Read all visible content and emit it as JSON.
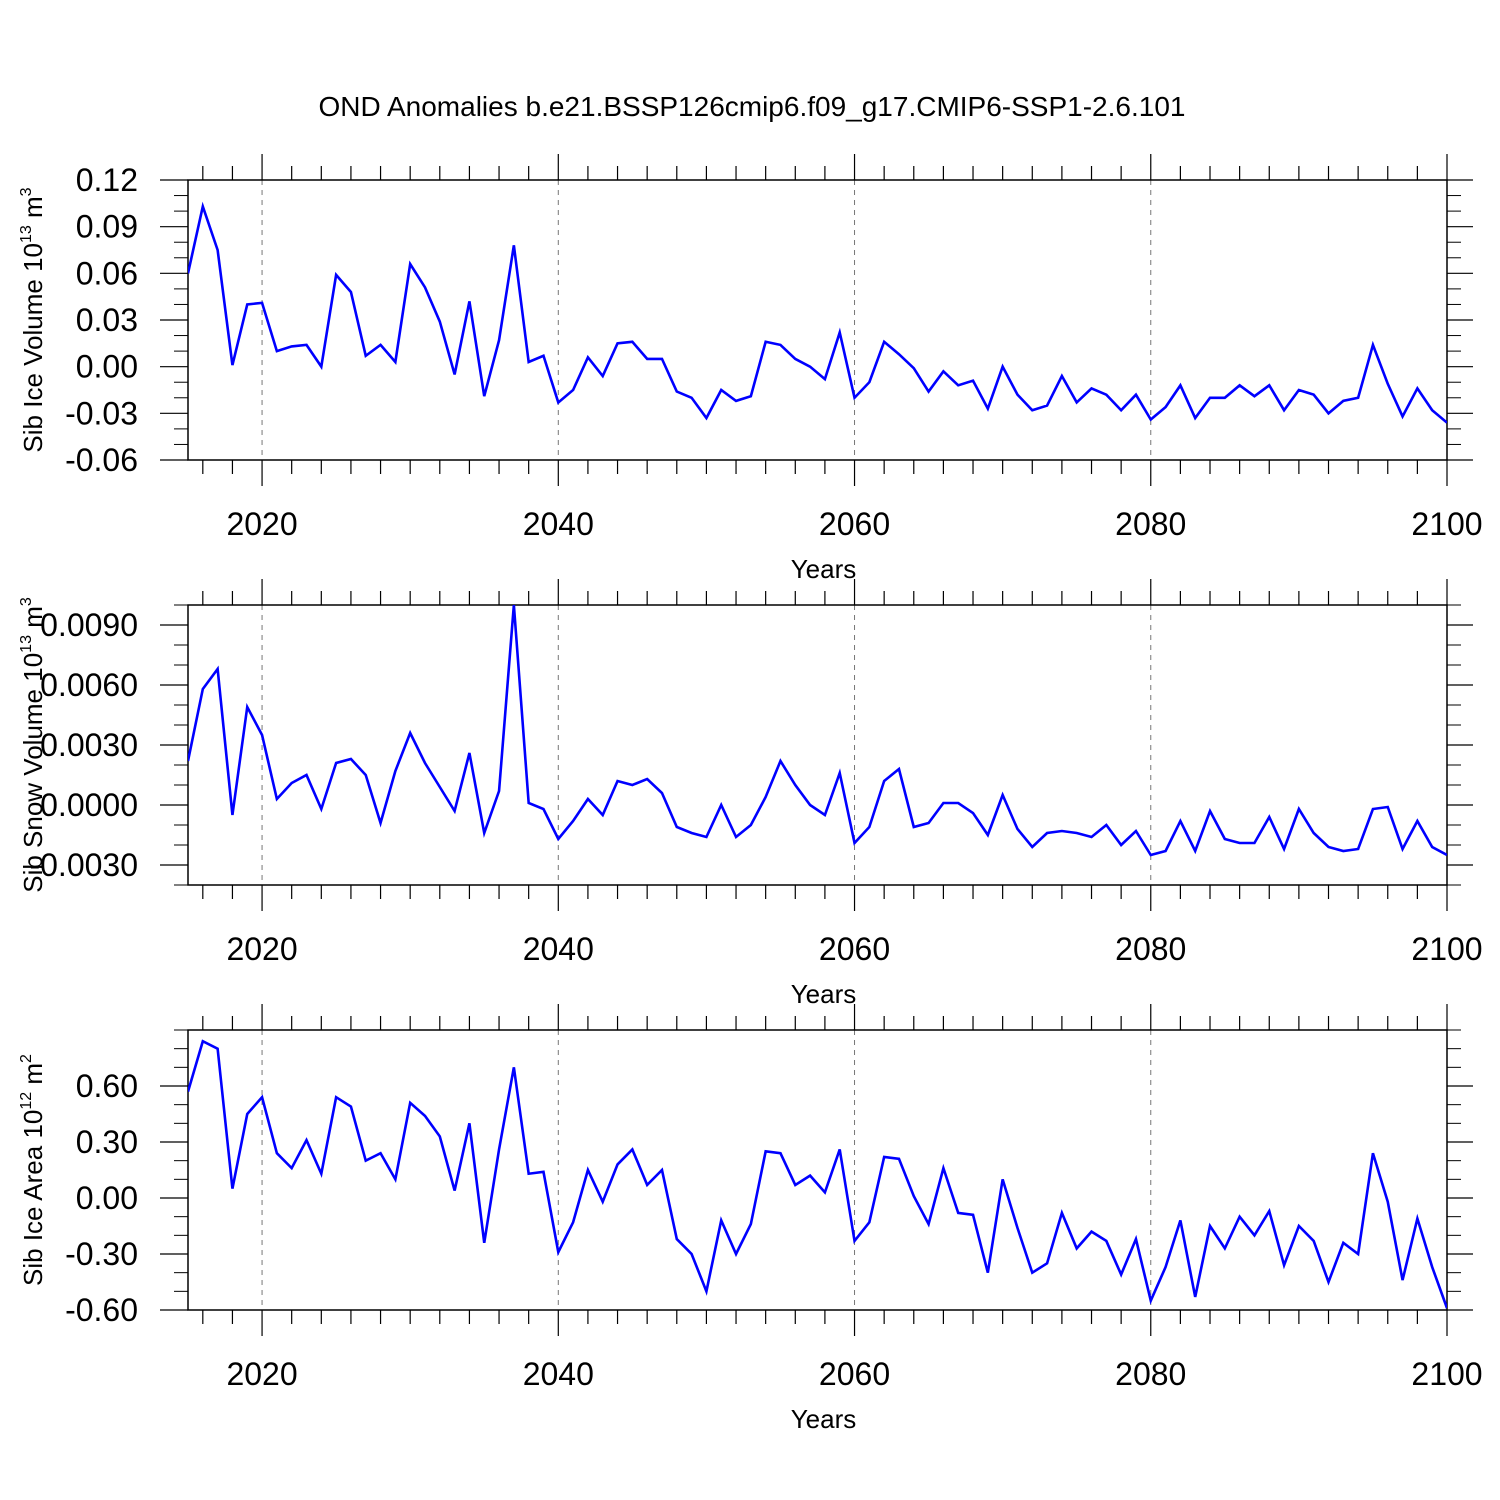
{
  "title": "OND Anomalies b.e21.BSSP126cmip6.f09_g17.CMIP6-SSP1-2.6.101",
  "line_color": "#0000ff",
  "chart_data": [
    {
      "type": "line",
      "xlabel": "Years",
      "ylabel_main": "Sib Ice Volume 10",
      "ylabel_sup": "13",
      "ylabel_tail": " m",
      "ylabel_unit_sup": "3",
      "xlim": [
        2015,
        2100
      ],
      "ylim": [
        -0.06,
        0.12
      ],
      "xticks": [
        2020,
        2040,
        2060,
        2080,
        2100
      ],
      "xtick_labels": [
        "2020",
        "2040",
        "2060",
        "2080",
        "2100"
      ],
      "yticks": [
        -0.06,
        -0.03,
        0.0,
        0.03,
        0.06,
        0.09,
        0.12
      ],
      "ytick_labels": [
        "-0.06",
        "-0.03",
        "0.00",
        "0.03",
        "0.06",
        "0.09",
        "0.12"
      ],
      "grid_x": [
        2020,
        2040,
        2060,
        2080
      ],
      "series": [
        {
          "x_start": 2015,
          "values": [
            0.06,
            0.103,
            0.075,
            0.001,
            0.04,
            0.041,
            0.01,
            0.013,
            0.014,
            0.0,
            0.059,
            0.048,
            0.007,
            0.014,
            0.003,
            0.066,
            0.051,
            0.029,
            -0.005,
            0.042,
            -0.019,
            0.017,
            0.078,
            0.003,
            0.007,
            -0.023,
            -0.015,
            0.006,
            -0.006,
            0.015,
            0.016,
            0.005,
            0.005,
            -0.016,
            -0.02,
            -0.033,
            -0.015,
            -0.022,
            -0.019,
            0.016,
            0.014,
            0.005,
            0.0,
            -0.008,
            0.022,
            -0.02,
            -0.01,
            0.016,
            0.008,
            -0.001,
            -0.016,
            -0.003,
            -0.012,
            -0.009,
            -0.027,
            0.0,
            -0.018,
            -0.028,
            -0.025,
            -0.006,
            -0.023,
            -0.014,
            -0.018,
            -0.028,
            -0.018,
            -0.034,
            -0.026,
            -0.012,
            -0.033,
            -0.02,
            -0.02,
            -0.012,
            -0.019,
            -0.012,
            -0.028,
            -0.015,
            -0.018,
            -0.03,
            -0.022,
            -0.02,
            0.014,
            -0.011,
            -0.032,
            -0.014,
            -0.028,
            -0.036
          ]
        }
      ]
    },
    {
      "type": "line",
      "xlabel": "Years",
      "ylabel_main": "Sib Snow Volume 10",
      "ylabel_sup": "13",
      "ylabel_tail": " m",
      "ylabel_unit_sup": "3",
      "xlim": [
        2015,
        2100
      ],
      "ylim": [
        -0.004,
        0.01
      ],
      "xticks": [
        2020,
        2040,
        2060,
        2080,
        2100
      ],
      "xtick_labels": [
        "2020",
        "2040",
        "2060",
        "2080",
        "2100"
      ],
      "yticks": [
        -0.003,
        0.0,
        0.003,
        0.006,
        0.009
      ],
      "ytick_labels": [
        "-0.0030",
        "0.0000",
        "0.0030",
        "0.0060",
        "0.0090"
      ],
      "grid_x": [
        2020,
        2040,
        2060,
        2080
      ],
      "series": [
        {
          "x_start": 2015,
          "values": [
            0.0022,
            0.0058,
            0.0068,
            -0.0005,
            0.0049,
            0.0035,
            0.0003,
            0.0011,
            0.0015,
            -0.0002,
            0.0021,
            0.0023,
            0.0015,
            -0.0009,
            0.0017,
            0.0036,
            0.0021,
            0.0009,
            -0.0003,
            0.0026,
            -0.0014,
            0.0007,
            0.01,
            0.0001,
            -0.0002,
            -0.0017,
            -0.0008,
            0.0003,
            -0.0005,
            0.0012,
            0.001,
            0.0013,
            0.0006,
            -0.0011,
            -0.0014,
            -0.0016,
            0.0,
            -0.0016,
            -0.001,
            0.0004,
            0.0022,
            0.001,
            0.0,
            -0.0005,
            0.0016,
            -0.0019,
            -0.0011,
            0.0012,
            0.0018,
            -0.0011,
            -0.0009,
            0.0001,
            0.0001,
            -0.0004,
            -0.0015,
            0.0005,
            -0.0012,
            -0.0021,
            -0.0014,
            -0.0013,
            -0.0014,
            -0.0016,
            -0.001,
            -0.002,
            -0.0013,
            -0.0025,
            -0.0023,
            -0.0008,
            -0.0023,
            -0.0003,
            -0.0017,
            -0.0019,
            -0.0019,
            -0.0006,
            -0.0022,
            -0.0002,
            -0.0014,
            -0.0021,
            -0.0023,
            -0.0022,
            -0.0002,
            -0.0001,
            -0.0022,
            -0.0008,
            -0.0021,
            -0.0025
          ]
        }
      ]
    },
    {
      "type": "line",
      "xlabel": "Years",
      "ylabel_main": "Sib Ice Area 10",
      "ylabel_sup": "12",
      "ylabel_tail": " m",
      "ylabel_unit_sup": "2",
      "xlim": [
        2015,
        2100
      ],
      "ylim": [
        -0.6,
        0.9
      ],
      "xticks": [
        2020,
        2040,
        2060,
        2080,
        2100
      ],
      "xtick_labels": [
        "2020",
        "2040",
        "2060",
        "2080",
        "2100"
      ],
      "yticks": [
        -0.6,
        -0.3,
        0.0,
        0.3,
        0.6
      ],
      "ytick_labels": [
        "-0.60",
        "-0.30",
        "0.00",
        "0.30",
        "0.60"
      ],
      "grid_x": [
        2020,
        2040,
        2060,
        2080
      ],
      "series": [
        {
          "x_start": 2015,
          "values": [
            0.57,
            0.84,
            0.8,
            0.05,
            0.45,
            0.54,
            0.24,
            0.16,
            0.31,
            0.13,
            0.54,
            0.49,
            0.2,
            0.24,
            0.1,
            0.51,
            0.44,
            0.33,
            0.04,
            0.4,
            -0.24,
            0.26,
            0.7,
            0.13,
            0.14,
            -0.29,
            -0.13,
            0.15,
            -0.02,
            0.18,
            0.26,
            0.07,
            0.15,
            -0.22,
            -0.3,
            -0.5,
            -0.12,
            -0.3,
            -0.14,
            0.25,
            0.24,
            0.07,
            0.12,
            0.03,
            0.26,
            -0.23,
            -0.13,
            0.22,
            0.21,
            0.01,
            -0.14,
            0.16,
            -0.08,
            -0.09,
            -0.4,
            0.1,
            -0.16,
            -0.4,
            -0.35,
            -0.08,
            -0.27,
            -0.18,
            -0.23,
            -0.41,
            -0.22,
            -0.55,
            -0.37,
            -0.12,
            -0.53,
            -0.15,
            -0.27,
            -0.1,
            -0.2,
            -0.07,
            -0.36,
            -0.15,
            -0.23,
            -0.45,
            -0.24,
            -0.3,
            0.24,
            -0.02,
            -0.44,
            -0.11,
            -0.37,
            -0.59
          ]
        }
      ]
    }
  ]
}
